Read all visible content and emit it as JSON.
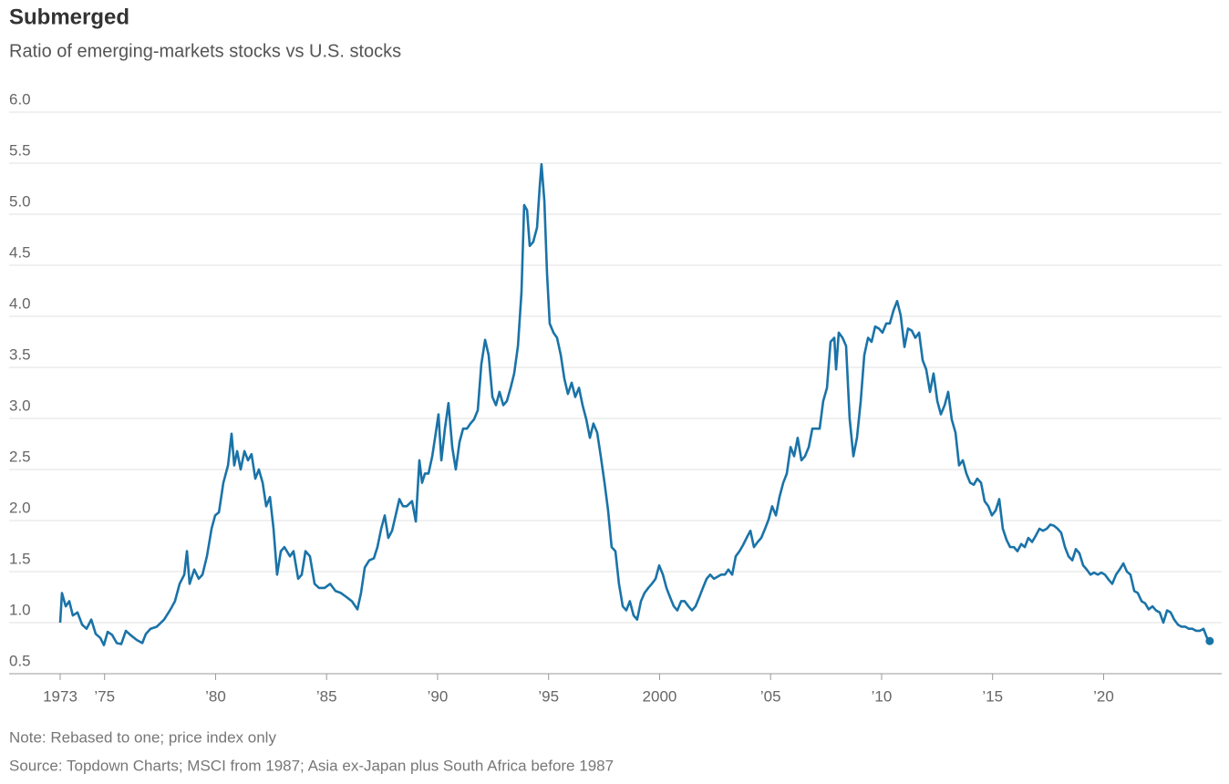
{
  "chart_data": {
    "type": "line",
    "title": "Submerged",
    "subtitle": "Ratio of emerging-markets stocks vs U.S. stocks",
    "note": "Note: Rebased to one; price index only",
    "source": "Source: Topdown Charts; MSCI from 1987; Asia ex-Japan plus South Africa before 1987",
    "xlim": [
      1970.7,
      2025.32
    ],
    "xticks": [
      {
        "value": 1973,
        "label": "1973"
      },
      {
        "value": 1975,
        "label": "’75"
      },
      {
        "value": 1980,
        "label": "’80"
      },
      {
        "value": 1985,
        "label": "’85"
      },
      {
        "value": 1990,
        "label": "’90"
      },
      {
        "value": 1995,
        "label": "’95"
      },
      {
        "value": 2000,
        "label": "2000"
      },
      {
        "value": 2005,
        "label": "’05"
      },
      {
        "value": 2010,
        "label": "’10"
      },
      {
        "value": 2015,
        "label": "’15"
      },
      {
        "value": 2020,
        "label": "’20"
      }
    ],
    "ylim": [
      0.5,
      6.0
    ],
    "yticks": [
      {
        "value": 0.5,
        "label": "0.5"
      },
      {
        "value": 1,
        "label": "1.0"
      },
      {
        "value": 1.5,
        "label": "1.5"
      },
      {
        "value": 2,
        "label": "2.0"
      },
      {
        "value": 2.5,
        "label": "2.5"
      },
      {
        "value": 3,
        "label": "3.0"
      },
      {
        "value": 3.5,
        "label": "3.5"
      },
      {
        "value": 4,
        "label": "4.0"
      },
      {
        "value": 4.5,
        "label": "4.5"
      },
      {
        "value": 5,
        "label": "5.0"
      },
      {
        "value": 5.5,
        "label": "5.5"
      },
      {
        "value": 6,
        "label": "6.0"
      }
    ],
    "grid": true,
    "x": [
      1973.0,
      1973.08,
      1973.25,
      1973.41,
      1973.57,
      1973.78,
      1973.99,
      1974.19,
      1974.4,
      1974.6,
      1974.81,
      1974.97,
      1975.14,
      1975.34,
      1975.55,
      1975.75,
      1975.96,
      1976.16,
      1976.45,
      1976.7,
      1976.86,
      1977.07,
      1977.35,
      1977.68,
      1977.97,
      1978.17,
      1978.38,
      1978.59,
      1978.71,
      1978.83,
      1979.04,
      1979.24,
      1979.41,
      1979.61,
      1979.82,
      1979.98,
      1980.15,
      1980.35,
      1980.56,
      1980.72,
      1980.84,
      1980.97,
      1981.13,
      1981.3,
      1981.46,
      1981.62,
      1981.79,
      1981.95,
      1982.12,
      1982.28,
      1982.45,
      1982.61,
      1982.77,
      1982.94,
      1983.1,
      1983.35,
      1983.51,
      1983.72,
      1983.88,
      1984.05,
      1984.25,
      1984.46,
      1984.66,
      1984.91,
      1985.16,
      1985.4,
      1985.65,
      1985.9,
      1986.14,
      1986.39,
      1986.55,
      1986.72,
      1986.92,
      1987.13,
      1987.29,
      1987.46,
      1987.62,
      1987.78,
      1987.95,
      1988.11,
      1988.28,
      1988.44,
      1988.61,
      1988.85,
      1989.02,
      1989.18,
      1989.3,
      1989.43,
      1989.59,
      1989.76,
      1989.92,
      1990.04,
      1990.17,
      1990.33,
      1990.49,
      1990.66,
      1990.82,
      1990.99,
      1991.15,
      1991.32,
      1991.48,
      1991.64,
      1991.81,
      1991.97,
      1992.14,
      1992.3,
      1992.47,
      1992.63,
      1992.79,
      1992.96,
      1993.12,
      1993.29,
      1993.45,
      1993.62,
      1993.78,
      1993.9,
      1994.03,
      1994.15,
      1994.31,
      1994.48,
      1994.6,
      1994.68,
      1994.81,
      1994.93,
      1995.05,
      1995.22,
      1995.38,
      1995.55,
      1995.71,
      1995.87,
      1996.04,
      1996.2,
      1996.37,
      1996.53,
      1996.7,
      1996.86,
      1997.02,
      1997.19,
      1997.35,
      1997.52,
      1997.68,
      1997.84,
      1998.01,
      1998.17,
      1998.34,
      1998.5,
      1998.66,
      1998.83,
      1998.99,
      1999.16,
      1999.32,
      1999.49,
      1999.65,
      1999.82,
      1999.98,
      2000.15,
      2000.31,
      2000.47,
      2000.64,
      2000.8,
      2000.97,
      2001.13,
      2001.3,
      2001.46,
      2001.62,
      2001.79,
      2001.95,
      2002.12,
      2002.28,
      2002.45,
      2002.61,
      2002.77,
      2002.94,
      2003.1,
      2003.27,
      2003.43,
      2003.6,
      2003.76,
      2003.92,
      2004.09,
      2004.25,
      2004.42,
      2004.58,
      2004.75,
      2004.91,
      2005.07,
      2005.24,
      2005.4,
      2005.57,
      2005.73,
      2005.9,
      2006.06,
      2006.22,
      2006.39,
      2006.55,
      2006.72,
      2006.88,
      2007.05,
      2007.21,
      2007.37,
      2007.54,
      2007.7,
      2007.87,
      2007.95,
      2008.07,
      2008.24,
      2008.4,
      2008.56,
      2008.73,
      2008.89,
      2009.06,
      2009.22,
      2009.39,
      2009.55,
      2009.71,
      2009.88,
      2010.04,
      2010.21,
      2010.37,
      2010.54,
      2010.7,
      2010.86,
      2011.03,
      2011.19,
      2011.36,
      2011.52,
      2011.69,
      2011.85,
      2012.01,
      2012.18,
      2012.34,
      2012.51,
      2012.67,
      2012.84,
      2013.0,
      2013.16,
      2013.33,
      2013.49,
      2013.66,
      2013.82,
      2013.99,
      2014.15,
      2014.31,
      2014.48,
      2014.64,
      2014.81,
      2014.97,
      2015.14,
      2015.3,
      2015.46,
      2015.63,
      2015.79,
      2015.96,
      2016.12,
      2016.29,
      2016.45,
      2016.61,
      2016.78,
      2016.94,
      2017.11,
      2017.27,
      2017.44,
      2017.6,
      2017.76,
      2017.93,
      2018.09,
      2018.26,
      2018.42,
      2018.59,
      2018.75,
      2018.91,
      2019.08,
      2019.24,
      2019.41,
      2019.57,
      2019.74,
      2019.9,
      2020.06,
      2020.23,
      2020.39,
      2020.56,
      2020.72,
      2020.89,
      2021.05,
      2021.21,
      2021.38,
      2021.54,
      2021.71,
      2021.87,
      2022.03,
      2022.2,
      2022.36,
      2022.53,
      2022.69,
      2022.86,
      2023.02,
      2023.18,
      2023.35,
      2023.51,
      2023.68,
      2023.84,
      2024.0,
      2024.17,
      2024.33,
      2024.5,
      2024.66,
      2024.78
    ],
    "series": [
      {
        "name": "Ratio",
        "color": "#1a73a8",
        "values": [
          1.0,
          1.29,
          1.16,
          1.21,
          1.07,
          1.1,
          0.98,
          0.94,
          1.03,
          0.89,
          0.85,
          0.78,
          0.91,
          0.88,
          0.8,
          0.79,
          0.92,
          0.88,
          0.83,
          0.8,
          0.89,
          0.94,
          0.96,
          1.03,
          1.13,
          1.21,
          1.38,
          1.47,
          1.7,
          1.38,
          1.52,
          1.43,
          1.47,
          1.65,
          1.92,
          2.05,
          2.08,
          2.37,
          2.54,
          2.85,
          2.54,
          2.68,
          2.5,
          2.68,
          2.59,
          2.65,
          2.41,
          2.5,
          2.37,
          2.14,
          2.23,
          1.92,
          1.47,
          1.7,
          1.74,
          1.65,
          1.7,
          1.43,
          1.47,
          1.7,
          1.65,
          1.38,
          1.34,
          1.34,
          1.38,
          1.31,
          1.29,
          1.25,
          1.21,
          1.13,
          1.29,
          1.54,
          1.61,
          1.63,
          1.74,
          1.92,
          2.05,
          1.83,
          1.9,
          2.05,
          2.21,
          2.14,
          2.14,
          2.19,
          1.99,
          2.59,
          2.37,
          2.46,
          2.46,
          2.63,
          2.86,
          3.04,
          2.59,
          2.9,
          3.15,
          2.72,
          2.5,
          2.77,
          2.9,
          2.9,
          2.95,
          2.99,
          3.08,
          3.53,
          3.77,
          3.62,
          3.21,
          3.13,
          3.26,
          3.13,
          3.17,
          3.3,
          3.44,
          3.71,
          4.24,
          5.09,
          5.04,
          4.69,
          4.73,
          4.87,
          5.27,
          5.49,
          5.13,
          4.42,
          3.93,
          3.84,
          3.79,
          3.62,
          3.39,
          3.24,
          3.35,
          3.21,
          3.3,
          3.13,
          2.99,
          2.81,
          2.95,
          2.86,
          2.63,
          2.37,
          2.1,
          1.74,
          1.7,
          1.38,
          1.16,
          1.12,
          1.21,
          1.07,
          1.03,
          1.21,
          1.29,
          1.34,
          1.38,
          1.43,
          1.56,
          1.47,
          1.34,
          1.25,
          1.16,
          1.12,
          1.21,
          1.21,
          1.16,
          1.12,
          1.16,
          1.25,
          1.34,
          1.43,
          1.47,
          1.43,
          1.45,
          1.47,
          1.47,
          1.52,
          1.47,
          1.65,
          1.7,
          1.76,
          1.83,
          1.9,
          1.74,
          1.79,
          1.83,
          1.92,
          2.01,
          2.14,
          2.05,
          2.23,
          2.37,
          2.46,
          2.72,
          2.63,
          2.81,
          2.59,
          2.63,
          2.72,
          2.9,
          2.9,
          2.9,
          3.17,
          3.3,
          3.75,
          3.79,
          3.48,
          3.84,
          3.79,
          3.71,
          3.0,
          2.63,
          2.81,
          3.17,
          3.62,
          3.79,
          3.75,
          3.9,
          3.88,
          3.84,
          3.93,
          3.93,
          4.06,
          4.15,
          4.01,
          3.7,
          3.88,
          3.86,
          3.79,
          3.84,
          3.57,
          3.48,
          3.26,
          3.44,
          3.17,
          3.04,
          3.13,
          3.26,
          2.99,
          2.86,
          2.54,
          2.59,
          2.46,
          2.37,
          2.35,
          2.41,
          2.37,
          2.19,
          2.14,
          2.05,
          2.1,
          2.21,
          1.92,
          1.81,
          1.74,
          1.74,
          1.7,
          1.77,
          1.74,
          1.83,
          1.79,
          1.85,
          1.92,
          1.9,
          1.92,
          1.96,
          1.95,
          1.92,
          1.88,
          1.74,
          1.65,
          1.61,
          1.72,
          1.68,
          1.56,
          1.52,
          1.47,
          1.49,
          1.47,
          1.49,
          1.47,
          1.42,
          1.38,
          1.47,
          1.52,
          1.58,
          1.5,
          1.47,
          1.31,
          1.29,
          1.21,
          1.19,
          1.13,
          1.16,
          1.12,
          1.1,
          1.0,
          1.12,
          1.1,
          1.03,
          0.98,
          0.96,
          0.96,
          0.94,
          0.94,
          0.92,
          0.92,
          0.94,
          0.85,
          0.82
        ]
      }
    ]
  }
}
